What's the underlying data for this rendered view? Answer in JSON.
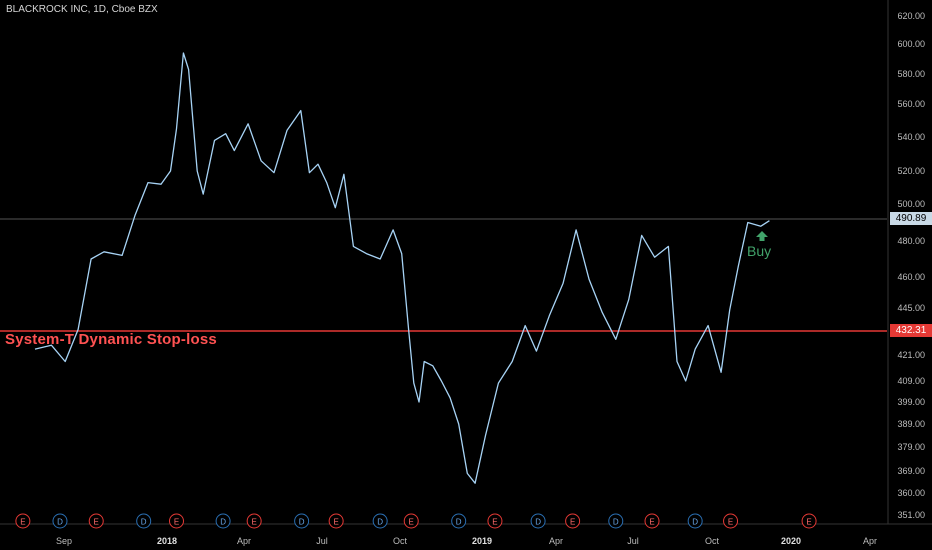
{
  "header": {
    "symbol_title": "BLACKROCK INC, 1D, Cboe BZX"
  },
  "overlays": {
    "stop_loss_label": "System-T Dynamic Stop-loss",
    "buy_label": "Buy",
    "last_price_tag": "490.89",
    "stop_loss_price_tag": "432.31"
  },
  "colors": {
    "background": "#000000",
    "line": "#a7d3f5",
    "stop_loss_line": "#e53935",
    "last_price_line": "#555555",
    "buy_arrow": "#41a36a",
    "earnings_marker": "#e53935",
    "dividend_marker": "#2a6fb3"
  },
  "chart_data": {
    "type": "line",
    "title": "BLACKROCK INC, 1D, Cboe BZX",
    "x_tick_labels": [
      "Sep",
      "2018",
      "Apr",
      "Jul",
      "Oct",
      "2019",
      "Apr",
      "Jul",
      "Oct",
      "2020",
      "Apr"
    ],
    "y_tick_labels": [
      "620.00",
      "600.00",
      "580.00",
      "560.00",
      "540.00",
      "520.00",
      "500.00",
      "480.00",
      "460.00",
      "445.00",
      "432.31",
      "421.00",
      "409.00",
      "399.00",
      "389.00",
      "379.00",
      "369.00",
      "360.00",
      "351.00"
    ],
    "x": [
      "2017-08-01",
      "2017-08-20",
      "2017-09-05",
      "2017-09-20",
      "2017-10-05",
      "2017-10-20",
      "2017-11-10",
      "2017-11-25",
      "2017-12-10",
      "2017-12-25",
      "2018-01-05",
      "2018-01-12",
      "2018-01-20",
      "2018-01-26",
      "2018-02-05",
      "2018-02-12",
      "2018-02-25",
      "2018-03-10",
      "2018-03-20",
      "2018-04-05",
      "2018-04-20",
      "2018-05-05",
      "2018-05-20",
      "2018-06-05",
      "2018-06-15",
      "2018-06-25",
      "2018-07-05",
      "2018-07-15",
      "2018-07-25",
      "2018-08-05",
      "2018-08-20",
      "2018-09-05",
      "2018-09-20",
      "2018-09-30",
      "2018-10-08",
      "2018-10-14",
      "2018-10-20",
      "2018-10-26",
      "2018-11-05",
      "2018-11-15",
      "2018-11-25",
      "2018-12-05",
      "2018-12-15",
      "2018-12-24",
      "2019-01-05",
      "2019-01-20",
      "2019-02-05",
      "2019-02-20",
      "2019-03-05",
      "2019-03-20",
      "2019-04-05",
      "2019-04-20",
      "2019-05-05",
      "2019-05-20",
      "2019-06-05",
      "2019-06-20",
      "2019-07-05",
      "2019-07-20",
      "2019-08-05",
      "2019-08-15",
      "2019-08-25",
      "2019-09-05",
      "2019-09-20",
      "2019-10-05",
      "2019-10-15",
      "2019-10-25",
      "2019-11-05",
      "2019-11-20",
      "2019-11-30"
    ],
    "series": [
      {
        "values": [
          424,
          426,
          418,
          434,
          470,
          474,
          472,
          494,
          513,
          512,
          520,
          545,
          594,
          583,
          520,
          506,
          538,
          542,
          532,
          548,
          526,
          519,
          544,
          556,
          519,
          524,
          513,
          498,
          518,
          477,
          473,
          470,
          486,
          473,
          434,
          408,
          399,
          418,
          416,
          409,
          401,
          389,
          368,
          364,
          384,
          408,
          418,
          436,
          423,
          441,
          457,
          486,
          459,
          443,
          429,
          449,
          483,
          471,
          477,
          418,
          409,
          424,
          436,
          413,
          444,
          466,
          490,
          488,
          491
        ]
      }
    ],
    "reference_lines": [
      {
        "value": 432.31,
        "label": "System-T Dynamic Stop-loss"
      },
      {
        "value": 490.89
      }
    ],
    "annotations": [
      {
        "x": "2019-11-24",
        "y": 482,
        "text": "Buy"
      }
    ],
    "events": [
      {
        "x": "2017-07-18",
        "label": "E"
      },
      {
        "x": "2017-08-30",
        "label": "D"
      },
      {
        "x": "2017-10-11",
        "label": "E"
      },
      {
        "x": "2017-12-05",
        "label": "D"
      },
      {
        "x": "2018-01-12",
        "label": "E"
      },
      {
        "x": "2018-03-07",
        "label": "D"
      },
      {
        "x": "2018-04-12",
        "label": "E"
      },
      {
        "x": "2018-06-06",
        "label": "D"
      },
      {
        "x": "2018-07-16",
        "label": "E"
      },
      {
        "x": "2018-09-05",
        "label": "D"
      },
      {
        "x": "2018-10-11",
        "label": "E"
      },
      {
        "x": "2018-12-05",
        "label": "D"
      },
      {
        "x": "2019-01-16",
        "label": "E"
      },
      {
        "x": "2019-03-07",
        "label": "D"
      },
      {
        "x": "2019-04-16",
        "label": "E"
      },
      {
        "x": "2019-06-05",
        "label": "D"
      },
      {
        "x": "2019-07-17",
        "label": "E"
      },
      {
        "x": "2019-09-05",
        "label": "D"
      },
      {
        "x": "2019-10-16",
        "label": "E"
      },
      {
        "x": "2020-01-15",
        "label": "E"
      }
    ],
    "grid": false,
    "y_axis_side": "right"
  }
}
